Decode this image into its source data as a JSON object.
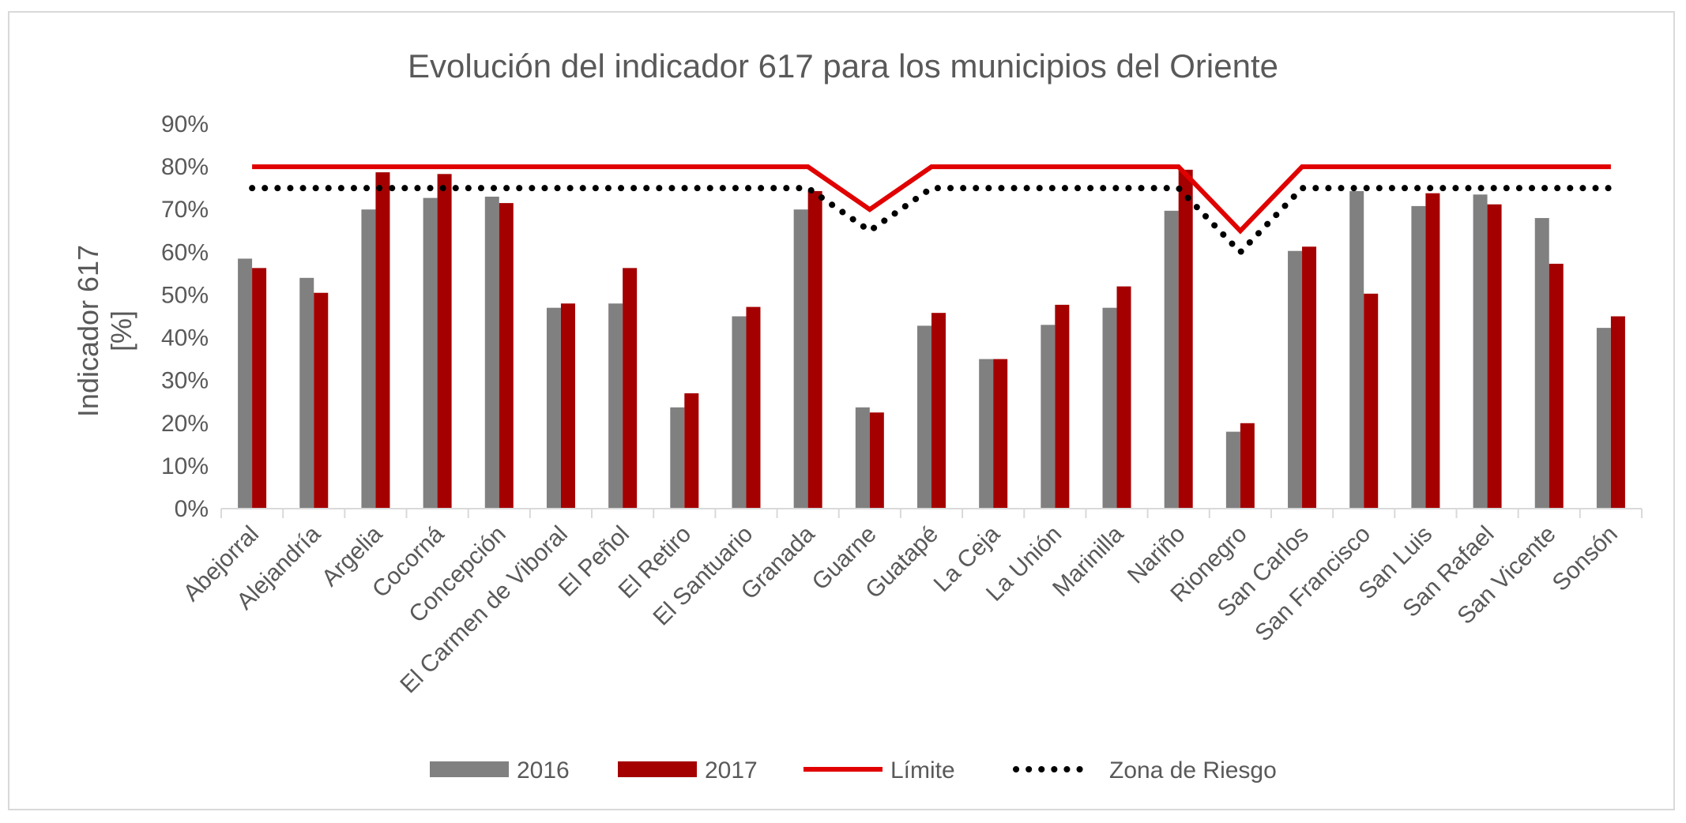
{
  "chart_data": {
    "type": "bar",
    "title": "Evolución del indicador 617 para los municipios del Oriente",
    "ylabel_line1": "Indicador 617",
    "ylabel_line2": "[%]",
    "xlabel": "",
    "ylim": [
      0,
      90
    ],
    "yticks": [
      0,
      10,
      20,
      30,
      40,
      50,
      60,
      70,
      80,
      90
    ],
    "ytick_labels": [
      "0%",
      "10%",
      "20%",
      "30%",
      "40%",
      "50%",
      "60%",
      "70%",
      "80%",
      "90%"
    ],
    "grid": false,
    "legend_position": "bottom",
    "categories": [
      "Abejorral",
      "Alejandría",
      "Argelia",
      "Cocorná",
      "Concepción",
      "El Carmen de Viboral",
      "El Peñol",
      "El Retiro",
      "El Santuario",
      "Granada",
      "Guarne",
      "Guatapé",
      "La Ceja",
      "La Unión",
      "Marinilla",
      "Nariño",
      "Rionegro",
      "San Carlos",
      "San Francisco",
      "San Luis",
      "San Rafael",
      "San Vicente",
      "Sonsón"
    ],
    "series": [
      {
        "name": "2016",
        "kind": "bar",
        "color": "#808080",
        "values": [
          58.5,
          54,
          70,
          72.7,
          73,
          47,
          48,
          23.7,
          45,
          70,
          23.7,
          42.8,
          35,
          43,
          47,
          69.7,
          18,
          60.3,
          74.3,
          70.8,
          73.5,
          68,
          42.3
        ]
      },
      {
        "name": "2017",
        "kind": "bar",
        "color": "#a50000",
        "values": [
          56.3,
          50.5,
          78.7,
          78.3,
          71.5,
          48,
          56.3,
          27,
          47.2,
          74.3,
          22.5,
          45.8,
          35,
          47.7,
          52,
          79.3,
          20,
          61.3,
          50.3,
          73.8,
          71.2,
          57.3,
          45
        ]
      },
      {
        "name": "Límite",
        "kind": "line",
        "color": "#e00000",
        "values": [
          80,
          80,
          80,
          80,
          80,
          80,
          80,
          80,
          80,
          80,
          70,
          80,
          80,
          80,
          80,
          80,
          65,
          80,
          80,
          80,
          80,
          80,
          80
        ]
      },
      {
        "name": "Zona de Riesgo",
        "kind": "dotted-line",
        "color": "#000000",
        "values": [
          75,
          75,
          75,
          75,
          75,
          75,
          75,
          75,
          75,
          75,
          65,
          75,
          75,
          75,
          75,
          75,
          60,
          75,
          75,
          75,
          75,
          75,
          75
        ]
      }
    ]
  }
}
